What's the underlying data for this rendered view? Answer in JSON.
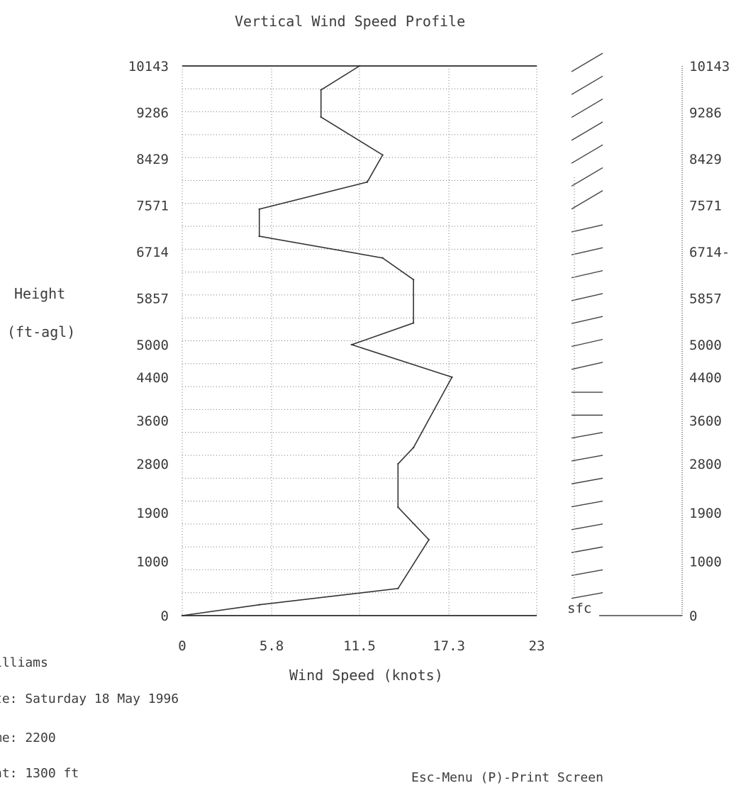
{
  "title": "Vertical Wind Speed Profile",
  "ylabel": {
    "line1": "Height",
    "line2": "(ft-agl)"
  },
  "xlabel": "Wind Speed (knots)",
  "info": {
    "name": "illiams",
    "date": "te: Saturday 18 May 1996",
    "time": "me: 2200",
    "altitude": "nt: 1300 ft"
  },
  "footer": "Esc-Menu  (P)-Print Screen",
  "barb_surface_label": "sfc",
  "chart_data": {
    "type": "line",
    "title": "Vertical Wind Speed Profile",
    "xlabel": "Wind Speed (knots)",
    "ylabel": "Height (ft-agl)",
    "xlim": [
      0,
      23
    ],
    "ylim": [
      0,
      10143
    ],
    "x_ticks": [
      0,
      5.8,
      11.5,
      17.3,
      23
    ],
    "x_tick_labels": [
      "0",
      "5.8",
      "11.5",
      "17.3",
      "23"
    ],
    "y_ticks": [
      0,
      1000,
      1900,
      2800,
      3600,
      4400,
      5000,
      5857,
      6714,
      7571,
      8429,
      9286,
      10143
    ],
    "y_tick_labels": [
      "0",
      "1000",
      "1900",
      "2800",
      "3600",
      "4400",
      "5000",
      "5857",
      "6714",
      "7571",
      "8429",
      "9286",
      "10143"
    ],
    "right_tick_labels": [
      "0",
      "1000",
      "1900",
      "2800",
      "3600",
      "4400",
      "5000",
      "5857",
      "6714-",
      "7571",
      "8429",
      "9286",
      "10143"
    ],
    "grid": true,
    "series": [
      {
        "speed": [
          0,
          5,
          14,
          16,
          14,
          14,
          15,
          17.5,
          11,
          15,
          15,
          13,
          5,
          5,
          12,
          13,
          9,
          9,
          11.5
        ],
        "height": [
          0,
          200,
          500,
          1400,
          2000,
          2800,
          3100,
          4400,
          5000,
          5400,
          6200,
          6600,
          7000,
          7500,
          8000,
          8500,
          9200,
          9700,
          10143
        ]
      }
    ]
  }
}
